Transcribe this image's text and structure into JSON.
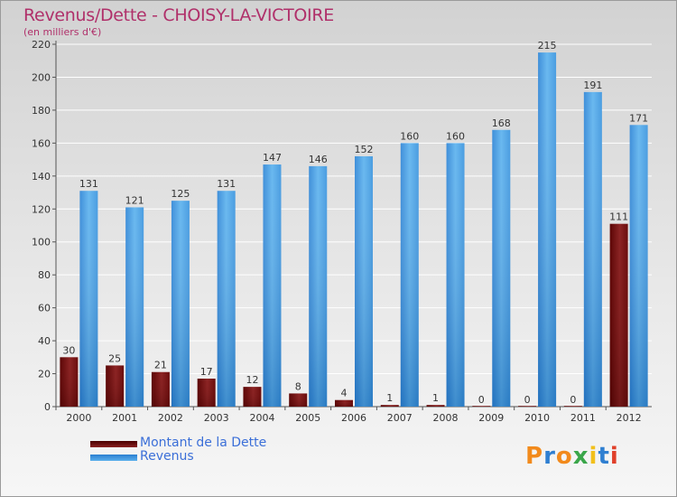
{
  "chart_data": {
    "type": "bar",
    "title": "Revenus/Dette - CHOISY-LA-VICTOIRE",
    "subtitle": "(en milliers d'€)",
    "categories": [
      "2000",
      "2001",
      "2002",
      "2003",
      "2004",
      "2005",
      "2006",
      "2007",
      "2008",
      "2009",
      "2010",
      "2011",
      "2012"
    ],
    "series": [
      {
        "name": "Montant de la Dette",
        "color": "#7a1010",
        "values": [
          30,
          25,
          21,
          17,
          12,
          8,
          4,
          1,
          1,
          0,
          0,
          0,
          111
        ]
      },
      {
        "name": "Revenus",
        "color": "#3d9ae0",
        "values": [
          131,
          121,
          125,
          131,
          147,
          146,
          152,
          160,
          160,
          168,
          215,
          191,
          171
        ]
      }
    ],
    "ylim": [
      0,
      220
    ],
    "yticks": [
      0,
      20,
      40,
      60,
      80,
      100,
      120,
      140,
      160,
      180,
      200,
      220
    ],
    "grid": true,
    "xlabel": "",
    "ylabel": ""
  },
  "logo": {
    "letters": [
      "P",
      "r",
      "o",
      "x",
      "i",
      "t",
      "i"
    ],
    "colors": [
      "#f28a1c",
      "#2f7fd1",
      "#f28a1c",
      "#3aa64a",
      "#f2c01c",
      "#2f7fd1",
      "#e0402a"
    ]
  }
}
